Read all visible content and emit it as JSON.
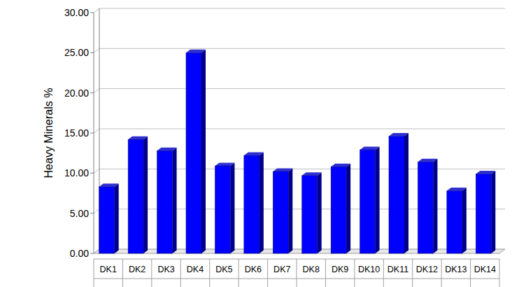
{
  "chart_data": {
    "type": "bar",
    "ylabel": "Heavy Minerals %",
    "categories": [
      "DK1",
      "DK2",
      "DK3",
      "DK4",
      "DK5",
      "DK6",
      "DK7",
      "DK8",
      "DK9",
      "DK10",
      "DK11",
      "DK12",
      "DK13",
      "DK14"
    ],
    "values": [
      8.3,
      14.2,
      12.8,
      25.0,
      10.9,
      12.2,
      10.2,
      9.7,
      10.8,
      12.9,
      14.6,
      11.4,
      7.8,
      9.9
    ],
    "color": "#0000ff",
    "ylim": [
      0,
      30
    ],
    "yticks": [
      {
        "value": 0,
        "label": "0.00"
      },
      {
        "value": 5,
        "label": "5.00"
      },
      {
        "value": 10,
        "label": "10.00"
      },
      {
        "value": 15,
        "label": "15.00"
      },
      {
        "value": 20,
        "label": "20.00"
      },
      {
        "value": 25,
        "label": "25.00"
      },
      {
        "value": 30,
        "label": "30.00"
      }
    ],
    "grid": true
  }
}
